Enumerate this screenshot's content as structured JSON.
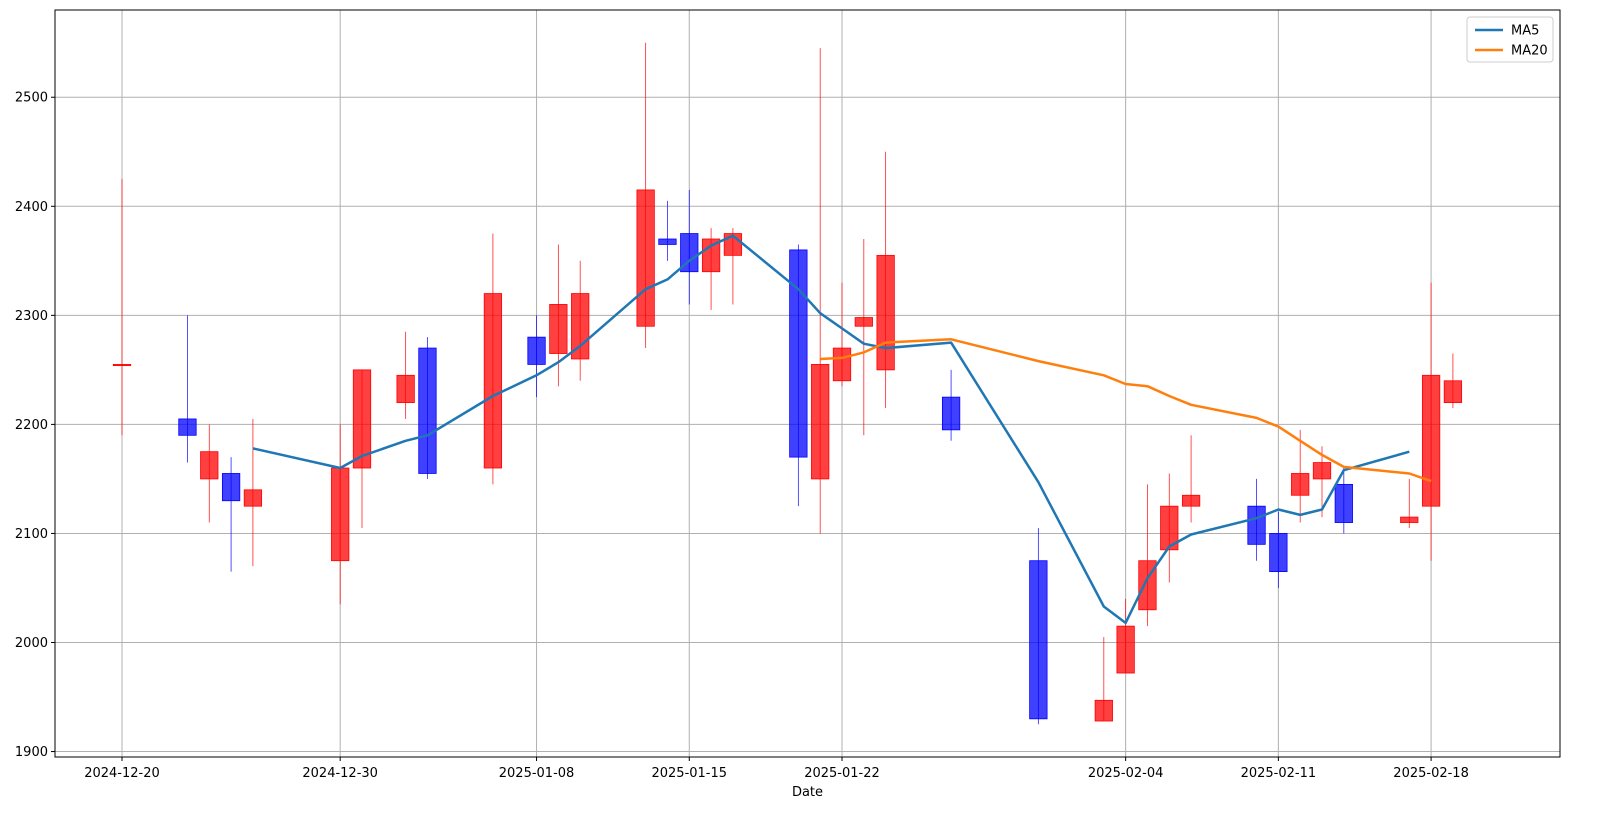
{
  "chart_data": {
    "type": "candlestick",
    "title": "",
    "xlabel": "Date",
    "ylabel": "",
    "ylim": [
      1895,
      2580
    ],
    "y_ticks": [
      1900,
      2000,
      2100,
      2200,
      2300,
      2400,
      2500
    ],
    "x_ticks": [
      "2024-12-20",
      "2024-12-30",
      "2025-01-08",
      "2025-01-15",
      "2025-01-22",
      "2025-02-04",
      "2025-02-11",
      "2025-02-18"
    ],
    "grid": true,
    "legend": {
      "placement": "top-right"
    },
    "colors": {
      "up": "#ff0000",
      "down": "#0000ff",
      "ma5": "#1f77b4",
      "ma20": "#ff7f0e",
      "grid": "#b0b0b0"
    },
    "candles": [
      {
        "date": "2024-12-20",
        "open": 2255,
        "high": 2425,
        "low": 2190,
        "close": 2255
      },
      {
        "date": "2024-12-23",
        "open": 2205,
        "high": 2300,
        "low": 2165,
        "close": 2190
      },
      {
        "date": "2024-12-24",
        "open": 2150,
        "high": 2200,
        "low": 2110,
        "close": 2175
      },
      {
        "date": "2024-12-25",
        "open": 2155,
        "high": 2170,
        "low": 2065,
        "close": 2130
      },
      {
        "date": "2024-12-26",
        "open": 2125,
        "high": 2205,
        "low": 2070,
        "close": 2140
      },
      {
        "date": "2024-12-30",
        "open": 2075,
        "high": 2200,
        "low": 2035,
        "close": 2160
      },
      {
        "date": "2024-12-31",
        "open": 2160,
        "high": 2250,
        "low": 2105,
        "close": 2250
      },
      {
        "date": "2025-01-02",
        "open": 2220,
        "high": 2285,
        "low": 2205,
        "close": 2245
      },
      {
        "date": "2025-01-03",
        "open": 2270,
        "high": 2280,
        "low": 2150,
        "close": 2155
      },
      {
        "date": "2025-01-06",
        "open": 2160,
        "high": 2375,
        "low": 2145,
        "close": 2320
      },
      {
        "date": "2025-01-08",
        "open": 2280,
        "high": 2300,
        "low": 2225,
        "close": 2255
      },
      {
        "date": "2025-01-09",
        "open": 2265,
        "high": 2365,
        "low": 2235,
        "close": 2310
      },
      {
        "date": "2025-01-10",
        "open": 2260,
        "high": 2350,
        "low": 2240,
        "close": 2320
      },
      {
        "date": "2025-01-13",
        "open": 2290,
        "high": 2550,
        "low": 2270,
        "close": 2415
      },
      {
        "date": "2025-01-14",
        "open": 2370,
        "high": 2405,
        "low": 2350,
        "close": 2365
      },
      {
        "date": "2025-01-15",
        "open": 2375,
        "high": 2415,
        "low": 2310,
        "close": 2340
      },
      {
        "date": "2025-01-16",
        "open": 2340,
        "high": 2380,
        "low": 2305,
        "close": 2370
      },
      {
        "date": "2025-01-17",
        "open": 2355,
        "high": 2380,
        "low": 2310,
        "close": 2375
      },
      {
        "date": "2025-01-20",
        "open": 2360,
        "high": 2365,
        "low": 2125,
        "close": 2170
      },
      {
        "date": "2025-01-21",
        "open": 2150,
        "high": 2545,
        "low": 2100,
        "close": 2255
      },
      {
        "date": "2025-01-22",
        "open": 2240,
        "high": 2330,
        "low": 2235,
        "close": 2270
      },
      {
        "date": "2025-01-23",
        "open": 2290,
        "high": 2370,
        "low": 2190,
        "close": 2298
      },
      {
        "date": "2025-01-24",
        "open": 2250,
        "high": 2450,
        "low": 2215,
        "close": 2355
      },
      {
        "date": "2025-01-27",
        "open": 2225,
        "high": 2250,
        "low": 2185,
        "close": 2195
      },
      {
        "date": "2025-01-31",
        "open": 2075,
        "high": 2105,
        "low": 1925,
        "close": 1930
      },
      {
        "date": "2025-02-03",
        "open": 1928,
        "high": 2005,
        "low": 1928,
        "close": 1947
      },
      {
        "date": "2025-02-04",
        "open": 1972,
        "high": 2040,
        "low": 1972,
        "close": 2015
      },
      {
        "date": "2025-02-05",
        "open": 2030,
        "high": 2145,
        "low": 2015,
        "close": 2075
      },
      {
        "date": "2025-02-06",
        "open": 2085,
        "high": 2155,
        "low": 2055,
        "close": 2125
      },
      {
        "date": "2025-02-07",
        "open": 2125,
        "high": 2190,
        "low": 2110,
        "close": 2135
      },
      {
        "date": "2025-02-10",
        "open": 2125,
        "high": 2150,
        "low": 2075,
        "close": 2090
      },
      {
        "date": "2025-02-11",
        "open": 2100,
        "high": 2120,
        "low": 2050,
        "close": 2065
      },
      {
        "date": "2025-02-12",
        "open": 2135,
        "high": 2195,
        "low": 2110,
        "close": 2155
      },
      {
        "date": "2025-02-13",
        "open": 2150,
        "high": 2180,
        "low": 2115,
        "close": 2165
      },
      {
        "date": "2025-02-14",
        "open": 2145,
        "high": 2160,
        "low": 2100,
        "close": 2110
      },
      {
        "date": "2025-02-17",
        "open": 2110,
        "high": 2150,
        "low": 2105,
        "close": 2115
      },
      {
        "date": "2025-02-18",
        "open": 2125,
        "high": 2330,
        "low": 2075,
        "close": 2245
      },
      {
        "date": "2025-02-19",
        "open": 2220,
        "high": 2265,
        "low": 2215,
        "close": 2240
      }
    ],
    "series": [
      {
        "name": "MA5",
        "points": [
          {
            "date": "2024-12-26",
            "value": 2178
          },
          {
            "date": "2024-12-30",
            "value": 2160
          },
          {
            "date": "2024-12-31",
            "value": 2171
          },
          {
            "date": "2025-01-02",
            "value": 2185
          },
          {
            "date": "2025-01-03",
            "value": 2190
          },
          {
            "date": "2025-01-06",
            "value": 2226
          },
          {
            "date": "2025-01-08",
            "value": 2245
          },
          {
            "date": "2025-01-09",
            "value": 2257
          },
          {
            "date": "2025-01-10",
            "value": 2272
          },
          {
            "date": "2025-01-13",
            "value": 2324
          },
          {
            "date": "2025-01-14",
            "value": 2333
          },
          {
            "date": "2025-01-15",
            "value": 2350
          },
          {
            "date": "2025-01-16",
            "value": 2364
          },
          {
            "date": "2025-01-17",
            "value": 2373
          },
          {
            "date": "2025-01-20",
            "value": 2324
          },
          {
            "date": "2025-01-21",
            "value": 2302
          },
          {
            "date": "2025-01-22",
            "value": 2288
          },
          {
            "date": "2025-01-23",
            "value": 2274
          },
          {
            "date": "2025-01-24",
            "value": 2270
          },
          {
            "date": "2025-01-27",
            "value": 2275
          },
          {
            "date": "2025-01-31",
            "value": 2147
          },
          {
            "date": "2025-02-03",
            "value": 2033
          },
          {
            "date": "2025-02-04",
            "value": 2018
          },
          {
            "date": "2025-02-05",
            "value": 2059
          },
          {
            "date": "2025-02-06",
            "value": 2088
          },
          {
            "date": "2025-02-07",
            "value": 2099
          },
          {
            "date": "2025-02-10",
            "value": 2114
          },
          {
            "date": "2025-02-11",
            "value": 2122
          },
          {
            "date": "2025-02-12",
            "value": 2117
          },
          {
            "date": "2025-02-13",
            "value": 2122
          },
          {
            "date": "2025-02-14",
            "value": 2158
          },
          {
            "date": "2025-02-17",
            "value": 2175
          }
        ]
      },
      {
        "name": "MA20",
        "points": [
          {
            "date": "2025-01-21",
            "value": 2260
          },
          {
            "date": "2025-01-22",
            "value": 2261
          },
          {
            "date": "2025-01-23",
            "value": 2266
          },
          {
            "date": "2025-01-24",
            "value": 2275
          },
          {
            "date": "2025-01-27",
            "value": 2278
          },
          {
            "date": "2025-01-31",
            "value": 2258
          },
          {
            "date": "2025-02-03",
            "value": 2245
          },
          {
            "date": "2025-02-04",
            "value": 2237
          },
          {
            "date": "2025-02-05",
            "value": 2235
          },
          {
            "date": "2025-02-06",
            "value": 2226
          },
          {
            "date": "2025-02-07",
            "value": 2218
          },
          {
            "date": "2025-02-10",
            "value": 2206
          },
          {
            "date": "2025-02-11",
            "value": 2198
          },
          {
            "date": "2025-02-12",
            "value": 2185
          },
          {
            "date": "2025-02-13",
            "value": 2172
          },
          {
            "date": "2025-02-14",
            "value": 2161
          },
          {
            "date": "2025-02-17",
            "value": 2155
          },
          {
            "date": "2025-02-18",
            "value": 2148
          }
        ]
      }
    ]
  }
}
